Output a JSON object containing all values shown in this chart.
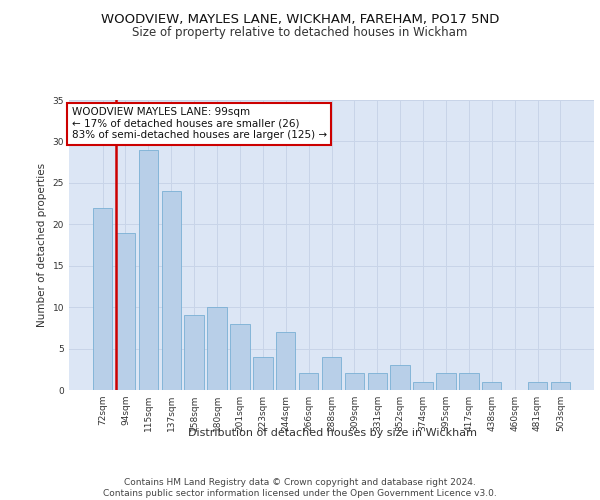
{
  "title1": "WOODVIEW, MAYLES LANE, WICKHAM, FAREHAM, PO17 5ND",
  "title2": "Size of property relative to detached houses in Wickham",
  "xlabel": "Distribution of detached houses by size in Wickham",
  "ylabel": "Number of detached properties",
  "categories": [
    "72sqm",
    "94sqm",
    "115sqm",
    "137sqm",
    "158sqm",
    "180sqm",
    "201sqm",
    "223sqm",
    "244sqm",
    "266sqm",
    "288sqm",
    "309sqm",
    "331sqm",
    "352sqm",
    "374sqm",
    "395sqm",
    "417sqm",
    "438sqm",
    "460sqm",
    "481sqm",
    "503sqm"
  ],
  "values": [
    22,
    19,
    29,
    24,
    9,
    10,
    8,
    4,
    7,
    2,
    4,
    2,
    2,
    3,
    1,
    2,
    2,
    1,
    0,
    1,
    1
  ],
  "bar_color": "#b8cfe8",
  "bar_edge_color": "#7aafd4",
  "highlight_bar_index": 1,
  "highlight_color": "#cc0000",
  "annotation_text": "WOODVIEW MAYLES LANE: 99sqm\n← 17% of detached houses are smaller (26)\n83% of semi-detached houses are larger (125) →",
  "annotation_box_color": "#ffffff",
  "annotation_box_edge_color": "#cc0000",
  "ylim": [
    0,
    35
  ],
  "yticks": [
    0,
    5,
    10,
    15,
    20,
    25,
    30,
    35
  ],
  "grid_color": "#c8d4e8",
  "background_color": "#dce6f5",
  "footer_text": "Contains HM Land Registry data © Crown copyright and database right 2024.\nContains public sector information licensed under the Open Government Licence v3.0.",
  "title1_fontsize": 9.5,
  "title2_fontsize": 8.5,
  "xlabel_fontsize": 8,
  "ylabel_fontsize": 7.5,
  "tick_fontsize": 6.5,
  "annotation_fontsize": 7.5,
  "footer_fontsize": 6.5
}
